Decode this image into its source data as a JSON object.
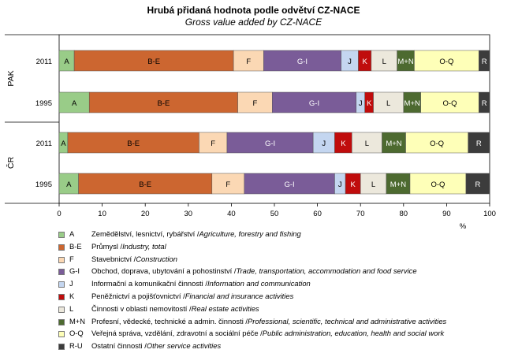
{
  "chart_data": {
    "type": "bar",
    "orientation": "horizontal",
    "stacked": true,
    "title": "Hrubá přidaná hodnota podle odvětví CZ-NACE",
    "subtitle": "Gross value added by CZ-NACE",
    "xlabel": "%",
    "xlim": [
      0,
      100
    ],
    "xticks": [
      0,
      10,
      20,
      30,
      40,
      50,
      60,
      70,
      80,
      90,
      100
    ],
    "groups": [
      {
        "name": "PAK",
        "rows": [
          "2011",
          "1995"
        ]
      },
      {
        "name": "ČR",
        "rows": [
          "2011",
          "1995"
        ]
      }
    ],
    "rows": [
      {
        "group": "PAK",
        "label": "2011",
        "values": [
          3.5,
          37,
          7,
          18,
          4,
          3,
          6,
          4,
          15,
          2.5
        ]
      },
      {
        "group": "PAK",
        "label": "1995",
        "values": [
          7,
          34.5,
          8,
          19.5,
          2,
          2,
          7,
          4,
          13.5,
          2.5
        ]
      },
      {
        "group": "ČR",
        "label": "2011",
        "values": [
          2,
          30.5,
          6.5,
          20,
          5,
          4,
          7,
          5.5,
          14.5,
          5
        ]
      },
      {
        "group": "ČR",
        "label": "1995",
        "values": [
          4.5,
          31,
          7.5,
          21,
          2.5,
          3.5,
          6,
          5.5,
          13,
          5.5
        ]
      }
    ],
    "series": [
      {
        "code": "A",
        "name_cz": "Zemědělství, lesnictví, rybářství",
        "name_en": "Agriculture, forestry and fishing",
        "color": "#99cc88"
      },
      {
        "code": "B-E",
        "name_cz": "Průmysl",
        "name_en": "Industry, total",
        "color": "#cc6630"
      },
      {
        "code": "F",
        "name_cz": "Stavebnictví",
        "name_en": "Construction",
        "color": "#fbd8b4"
      },
      {
        "code": "G-I",
        "name_cz": "Obchod, doprava, ubytování a pohostinství",
        "name_en": "Trade, transportation, accommodation and food service",
        "color": "#7a5c98"
      },
      {
        "code": "J",
        "name_cz": "Informační a komunikační činnosti",
        "name_en": "Information and communication",
        "color": "#c4d6f0"
      },
      {
        "code": "K",
        "name_cz": "Peněžnictví a pojišťovnictví",
        "name_en": "Financial and insurance activities",
        "color": "#c00c0c"
      },
      {
        "code": "L",
        "name_cz": "Činnosti v oblasti nemovitostí",
        "name_en": "Real estate activities",
        "color": "#ece8dc"
      },
      {
        "code": "M+N",
        "name_cz": "Profesní, vědecké, technické a admin. činnosti",
        "name_en": "Professional, scientific, technical and administrative activities",
        "color": "#4d6a30"
      },
      {
        "code": "O-Q",
        "name_cz": "Veřejná správa, vzdělání, zdravotní a sociální péče",
        "name_en": "Public administration, education, health and social work",
        "color": "#feffb8"
      },
      {
        "code": "R-U",
        "name_cz": "Ostatní činnosti",
        "name_en": "Other service activities",
        "color": "#3c3c3c"
      }
    ],
    "bar_labels": [
      "A",
      "B-E",
      "F",
      "G-I",
      "J",
      "K",
      "L",
      "M+N",
      "O-Q",
      "R"
    ],
    "light_text_series": [
      "G-I",
      "K",
      "M+N",
      "R-U"
    ]
  }
}
